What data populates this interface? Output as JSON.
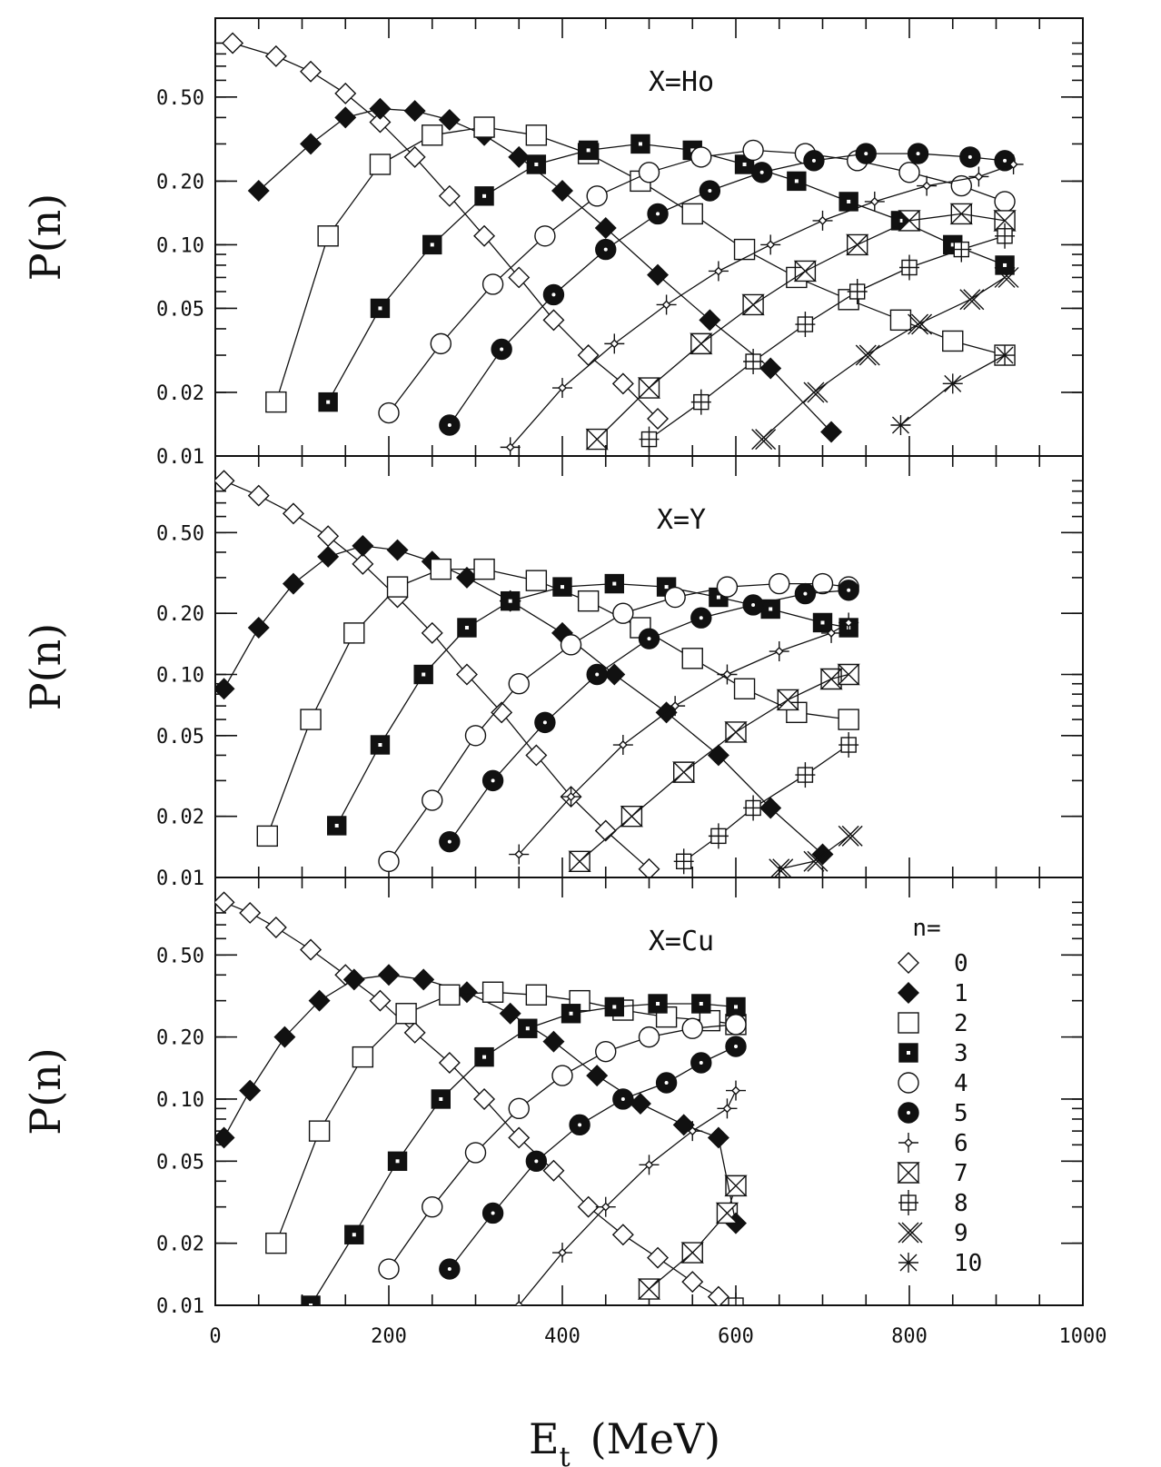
{
  "chart_data": [
    {
      "type": "scatter",
      "title": "X=Ho",
      "ylabel": "P(n)",
      "xlabel": "",
      "scale": "log",
      "xlim": [
        0,
        1000
      ],
      "ylim": [
        0.01,
        0.95
      ],
      "yticks": [
        {
          "value": 0.01,
          "label": "0.01"
        },
        {
          "value": 0.02,
          "label": "0.02"
        },
        {
          "value": 0.05,
          "label": "0.05"
        },
        {
          "value": 0.1,
          "label": "0.10"
        },
        {
          "value": 0.2,
          "label": "0.20"
        },
        {
          "value": 0.5,
          "label": "0.50"
        }
      ],
      "series": [
        {
          "n": 0,
          "marker": "diamond-open",
          "x": [
            20,
            70,
            110,
            150,
            190,
            230,
            270,
            310,
            350,
            390,
            430,
            470,
            510
          ],
          "y": [
            0.9,
            0.78,
            0.66,
            0.52,
            0.38,
            0.26,
            0.17,
            0.11,
            0.07,
            0.044,
            0.03,
            0.022,
            0.015
          ]
        },
        {
          "n": 1,
          "marker": "diamond-filled",
          "x": [
            50,
            110,
            150,
            190,
            230,
            270,
            310,
            350,
            400,
            450,
            510,
            570,
            640,
            710
          ],
          "y": [
            0.18,
            0.3,
            0.4,
            0.44,
            0.43,
            0.39,
            0.33,
            0.26,
            0.18,
            0.12,
            0.072,
            0.044,
            0.026,
            0.013
          ]
        },
        {
          "n": 2,
          "marker": "square-open",
          "x": [
            70,
            130,
            190,
            250,
            310,
            370,
            430,
            490,
            550,
            610,
            670,
            730,
            790,
            850,
            910
          ],
          "y": [
            0.018,
            0.11,
            0.24,
            0.33,
            0.36,
            0.33,
            0.27,
            0.2,
            0.14,
            0.095,
            0.07,
            0.055,
            0.044,
            0.035,
            0.03
          ]
        },
        {
          "n": 3,
          "marker": "square-filled",
          "x": [
            130,
            190,
            250,
            310,
            370,
            430,
            490,
            550,
            610,
            670,
            730,
            790,
            850,
            910
          ],
          "y": [
            0.018,
            0.05,
            0.1,
            0.17,
            0.24,
            0.28,
            0.3,
            0.28,
            0.24,
            0.2,
            0.16,
            0.13,
            0.1,
            0.08
          ]
        },
        {
          "n": 4,
          "marker": "circle-open",
          "x": [
            200,
            260,
            320,
            380,
            440,
            500,
            560,
            620,
            680,
            740,
            800,
            860,
            910
          ],
          "y": [
            0.016,
            0.034,
            0.065,
            0.11,
            0.17,
            0.22,
            0.26,
            0.28,
            0.27,
            0.25,
            0.22,
            0.19,
            0.16
          ]
        },
        {
          "n": 5,
          "marker": "circle-filled",
          "x": [
            270,
            330,
            390,
            450,
            510,
            570,
            630,
            690,
            750,
            810,
            870,
            910
          ],
          "y": [
            0.014,
            0.032,
            0.058,
            0.095,
            0.14,
            0.18,
            0.22,
            0.25,
            0.27,
            0.27,
            0.26,
            0.25
          ]
        },
        {
          "n": 6,
          "marker": "star-small",
          "x": [
            340,
            400,
            460,
            520,
            580,
            640,
            700,
            760,
            820,
            880,
            920
          ],
          "y": [
            0.011,
            0.021,
            0.034,
            0.052,
            0.075,
            0.1,
            0.13,
            0.16,
            0.19,
            0.21,
            0.24
          ]
        },
        {
          "n": 7,
          "marker": "hourglass",
          "x": [
            440,
            500,
            560,
            620,
            680,
            740,
            800,
            860,
            910
          ],
          "y": [
            0.012,
            0.021,
            0.034,
            0.052,
            0.075,
            0.1,
            0.13,
            0.14,
            0.13
          ]
        },
        {
          "n": 8,
          "marker": "plus-box",
          "x": [
            500,
            560,
            620,
            680,
            740,
            800,
            860,
            910
          ],
          "y": [
            0.012,
            0.018,
            0.028,
            0.042,
            0.06,
            0.078,
            0.095,
            0.11
          ]
        },
        {
          "n": 9,
          "marker": "cross-x",
          "x": [
            630,
            690,
            750,
            810,
            870,
            910
          ],
          "y": [
            0.012,
            0.02,
            0.03,
            0.042,
            0.055,
            0.07
          ]
        },
        {
          "n": 10,
          "marker": "asterisk",
          "x": [
            790,
            850,
            910
          ],
          "y": [
            0.014,
            0.022,
            0.03
          ]
        }
      ]
    },
    {
      "type": "scatter",
      "title": "X=Y",
      "ylabel": "P(n)",
      "xlabel": "",
      "scale": "log",
      "xlim": [
        0,
        1000
      ],
      "ylim": [
        0.01,
        0.95
      ],
      "yticks": [
        {
          "value": 0.01,
          "label": "0.01"
        },
        {
          "value": 0.02,
          "label": "0.02"
        },
        {
          "value": 0.05,
          "label": "0.05"
        },
        {
          "value": 0.1,
          "label": "0.10"
        },
        {
          "value": 0.2,
          "label": "0.20"
        },
        {
          "value": 0.5,
          "label": "0.50"
        }
      ],
      "series": [
        {
          "n": 0,
          "marker": "diamond-open",
          "x": [
            10,
            50,
            90,
            130,
            170,
            210,
            250,
            290,
            330,
            370,
            410,
            450,
            500
          ],
          "y": [
            0.9,
            0.76,
            0.62,
            0.48,
            0.35,
            0.24,
            0.16,
            0.1,
            0.065,
            0.04,
            0.025,
            0.017,
            0.011
          ]
        },
        {
          "n": 1,
          "marker": "diamond-filled",
          "x": [
            10,
            50,
            90,
            130,
            170,
            210,
            250,
            290,
            340,
            400,
            460,
            520,
            580,
            640,
            700
          ],
          "y": [
            0.085,
            0.17,
            0.28,
            0.38,
            0.43,
            0.41,
            0.36,
            0.3,
            0.23,
            0.16,
            0.1,
            0.065,
            0.04,
            0.022,
            0.013
          ]
        },
        {
          "n": 2,
          "marker": "square-open",
          "x": [
            60,
            110,
            160,
            210,
            260,
            310,
            370,
            430,
            490,
            550,
            610,
            670,
            730
          ],
          "y": [
            0.016,
            0.06,
            0.16,
            0.27,
            0.33,
            0.33,
            0.29,
            0.23,
            0.17,
            0.12,
            0.085,
            0.065,
            0.06
          ]
        },
        {
          "n": 3,
          "marker": "square-filled",
          "x": [
            140,
            190,
            240,
            290,
            340,
            400,
            460,
            520,
            580,
            640,
            700,
            730
          ],
          "y": [
            0.018,
            0.045,
            0.1,
            0.17,
            0.23,
            0.27,
            0.28,
            0.27,
            0.24,
            0.21,
            0.18,
            0.17
          ]
        },
        {
          "n": 4,
          "marker": "circle-open",
          "x": [
            200,
            250,
            300,
            350,
            410,
            470,
            530,
            590,
            650,
            700,
            730
          ],
          "y": [
            0.012,
            0.024,
            0.05,
            0.09,
            0.14,
            0.2,
            0.24,
            0.27,
            0.28,
            0.28,
            0.27
          ]
        },
        {
          "n": 5,
          "marker": "circle-filled",
          "x": [
            270,
            320,
            380,
            440,
            500,
            560,
            620,
            680,
            730
          ],
          "y": [
            0.015,
            0.03,
            0.058,
            0.1,
            0.15,
            0.19,
            0.22,
            0.25,
            0.26
          ]
        },
        {
          "n": 6,
          "marker": "star-small",
          "x": [
            350,
            410,
            470,
            530,
            590,
            650,
            710,
            730
          ],
          "y": [
            0.013,
            0.025,
            0.045,
            0.07,
            0.1,
            0.13,
            0.16,
            0.18
          ]
        },
        {
          "n": 7,
          "marker": "hourglass",
          "x": [
            420,
            480,
            540,
            600,
            660,
            710,
            730
          ],
          "y": [
            0.012,
            0.02,
            0.033,
            0.052,
            0.075,
            0.095,
            0.1
          ]
        },
        {
          "n": 8,
          "marker": "plus-box",
          "x": [
            540,
            580,
            620,
            680,
            730
          ],
          "y": [
            0.012,
            0.016,
            0.022,
            0.032,
            0.045
          ]
        },
        {
          "n": 9,
          "marker": "cross-x",
          "x": [
            650,
            690,
            730
          ],
          "y": [
            0.011,
            0.012,
            0.016
          ]
        }
      ]
    },
    {
      "type": "scatter",
      "title": "X=Cu",
      "ylabel": "P(n)",
      "xlabel": "E_t (MeV)",
      "scale": "log",
      "xlim": [
        0,
        1000
      ],
      "ylim": [
        0.01,
        0.95
      ],
      "xticks": [
        {
          "value": 0,
          "label": "0"
        },
        {
          "value": 200,
          "label": "200"
        },
        {
          "value": 400,
          "label": "400"
        },
        {
          "value": 600,
          "label": "600"
        },
        {
          "value": 800,
          "label": "800"
        },
        {
          "value": 1000,
          "label": "1000"
        }
      ],
      "yticks": [
        {
          "value": 0.01,
          "label": "0.01"
        },
        {
          "value": 0.02,
          "label": "0.02"
        },
        {
          "value": 0.05,
          "label": "0.05"
        },
        {
          "value": 0.1,
          "label": "0.10"
        },
        {
          "value": 0.2,
          "label": "0.20"
        },
        {
          "value": 0.5,
          "label": "0.50"
        }
      ],
      "series": [
        {
          "n": 0,
          "marker": "diamond-open",
          "x": [
            10,
            40,
            70,
            110,
            150,
            190,
            230,
            270,
            310,
            350,
            390,
            430,
            470,
            510,
            550,
            580
          ],
          "y": [
            0.9,
            0.8,
            0.68,
            0.53,
            0.4,
            0.3,
            0.21,
            0.15,
            0.1,
            0.065,
            0.045,
            0.03,
            0.022,
            0.017,
            0.013,
            0.011
          ]
        },
        {
          "n": 1,
          "marker": "diamond-filled",
          "x": [
            10,
            40,
            80,
            120,
            160,
            200,
            240,
            290,
            340,
            390,
            440,
            490,
            540,
            580,
            600
          ],
          "y": [
            0.065,
            0.11,
            0.2,
            0.3,
            0.38,
            0.4,
            0.38,
            0.33,
            0.26,
            0.19,
            0.13,
            0.095,
            0.075,
            0.065,
            0.025
          ]
        },
        {
          "n": 2,
          "marker": "square-open",
          "x": [
            70,
            120,
            170,
            220,
            270,
            320,
            370,
            420,
            470,
            520,
            570,
            600
          ],
          "y": [
            0.02,
            0.07,
            0.16,
            0.26,
            0.32,
            0.33,
            0.32,
            0.3,
            0.27,
            0.25,
            0.24,
            0.23
          ]
        },
        {
          "n": 3,
          "marker": "square-filled",
          "x": [
            110,
            160,
            210,
            260,
            310,
            360,
            410,
            460,
            510,
            560,
            600
          ],
          "y": [
            0.01,
            0.022,
            0.05,
            0.1,
            0.16,
            0.22,
            0.26,
            0.28,
            0.29,
            0.29,
            0.28
          ]
        },
        {
          "n": 4,
          "marker": "circle-open",
          "x": [
            200,
            250,
            300,
            350,
            400,
            450,
            500,
            550,
            600
          ],
          "y": [
            0.015,
            0.03,
            0.055,
            0.09,
            0.13,
            0.17,
            0.2,
            0.22,
            0.23
          ]
        },
        {
          "n": 5,
          "marker": "circle-filled",
          "x": [
            270,
            320,
            370,
            420,
            470,
            520,
            560,
            600
          ],
          "y": [
            0.015,
            0.028,
            0.05,
            0.075,
            0.1,
            0.12,
            0.15,
            0.18
          ]
        },
        {
          "n": 6,
          "marker": "star-small",
          "x": [
            350,
            400,
            450,
            500,
            550,
            590,
            600
          ],
          "y": [
            0.01,
            0.018,
            0.03,
            0.048,
            0.07,
            0.09,
            0.11
          ]
        },
        {
          "n": 7,
          "marker": "hourglass",
          "x": [
            500,
            550,
            590,
            600
          ],
          "y": [
            0.012,
            0.018,
            0.028,
            0.038
          ]
        },
        {
          "n": 8,
          "marker": "plus-box",
          "x": [
            600
          ],
          "y": [
            0.01
          ]
        }
      ]
    }
  ],
  "legend": {
    "title": "n=",
    "entries": [
      {
        "marker": "diamond-open",
        "label": "0"
      },
      {
        "marker": "diamond-filled",
        "label": "1"
      },
      {
        "marker": "square-open",
        "label": "2"
      },
      {
        "marker": "square-filled",
        "label": "3"
      },
      {
        "marker": "circle-open",
        "label": "4"
      },
      {
        "marker": "circle-filled",
        "label": "5"
      },
      {
        "marker": "star-small",
        "label": "6"
      },
      {
        "marker": "hourglass",
        "label": "7"
      },
      {
        "marker": "plus-box",
        "label": "8"
      },
      {
        "marker": "cross-x",
        "label": "9"
      },
      {
        "marker": "asterisk",
        "label": "10"
      }
    ]
  },
  "xaxis_title": {
    "main": "E",
    "subscript": "t",
    "unit": "(MeV)"
  }
}
